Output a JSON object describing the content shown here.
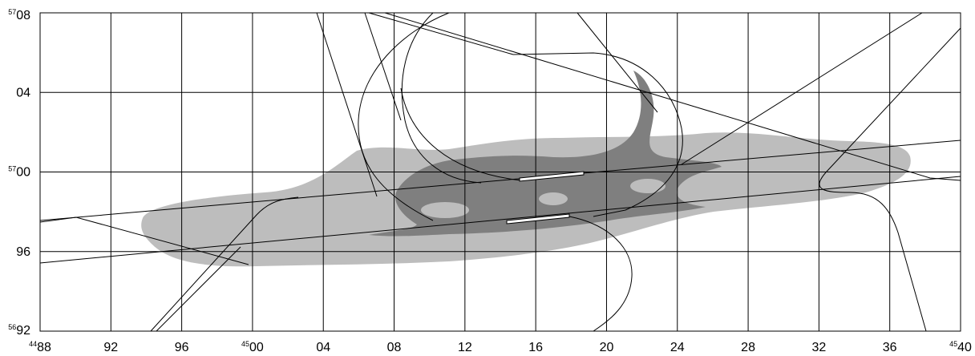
{
  "grid_labels": {
    "x": [
      {
        "prefix": "44",
        "text": "88"
      },
      {
        "text": "92"
      },
      {
        "text": "96"
      },
      {
        "prefix": "45",
        "text": "00"
      },
      {
        "text": "04"
      },
      {
        "text": "08"
      },
      {
        "text": "12"
      },
      {
        "text": "16"
      },
      {
        "text": "20"
      },
      {
        "text": "24"
      },
      {
        "text": "28"
      },
      {
        "text": "32"
      },
      {
        "text": "36"
      },
      {
        "prefix": "45",
        "text": "40"
      }
    ],
    "y": [
      {
        "prefix": "57",
        "text": "08"
      },
      {
        "text": "04"
      },
      {
        "prefix": "57",
        "text": "00"
      },
      {
        "text": "96"
      },
      {
        "prefix": "56",
        "text": "92"
      }
    ]
  }
}
